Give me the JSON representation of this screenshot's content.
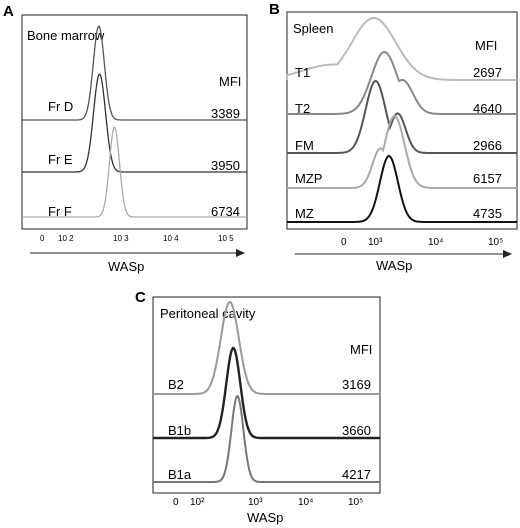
{
  "panels": [
    {
      "letter": "A",
      "title": "Bone marrow",
      "mfi_header": "MFI",
      "axis_label": "WASp",
      "ticks": [
        "0",
        "10 2",
        "10 3",
        "10 4",
        "10 5"
      ],
      "rows": [
        {
          "label": "Fr D",
          "mfi": "3389",
          "color": "#555555"
        },
        {
          "label": "Fr E",
          "mfi": "3950",
          "color": "#333333"
        },
        {
          "label": "Fr F",
          "mfi": "6734",
          "color": "#aaaaaa"
        }
      ]
    },
    {
      "letter": "B",
      "title": "Spleen",
      "mfi_header": "MFI",
      "axis_label": "WASp",
      "ticks": [
        "0",
        "10³",
        "10⁴",
        "10⁵"
      ],
      "rows": [
        {
          "label": "T1",
          "mfi": "2697",
          "color": "#bbbbbb"
        },
        {
          "label": "T2",
          "mfi": "4640",
          "color": "#888888"
        },
        {
          "label": "FM",
          "mfi": "2966",
          "color": "#555555"
        },
        {
          "label": "MZP",
          "mfi": "6157",
          "color": "#aaaaaa"
        },
        {
          "label": "MZ",
          "mfi": "4735",
          "color": "#111111"
        }
      ]
    },
    {
      "letter": "C",
      "title": "Peritoneal cavity",
      "mfi_header": "MFI",
      "axis_label": "WASp",
      "ticks": [
        "0",
        "10²",
        "10³",
        "10⁴",
        "10⁵"
      ],
      "rows": [
        {
          "label": "B2",
          "mfi": "3169",
          "color": "#999999"
        },
        {
          "label": "B1b",
          "mfi": "3660",
          "color": "#222222"
        },
        {
          "label": "B1a",
          "mfi": "4217",
          "color": "#777777"
        }
      ]
    }
  ],
  "chart_data": [
    {
      "type": "area",
      "title": "Bone marrow",
      "xlabel": "WASp",
      "x_scale": "biexponential",
      "xticks": [
        "0",
        "10 2",
        "10 3",
        "10 4",
        "10 5"
      ],
      "series": [
        {
          "name": "Fr D",
          "mfi": 3389,
          "peak_x": 3000
        },
        {
          "name": "Fr E",
          "mfi": 3950,
          "peak_x": 3100
        },
        {
          "name": "Fr F",
          "mfi": 6734,
          "peak_x": 6000
        }
      ]
    },
    {
      "type": "area",
      "title": "Spleen",
      "xlabel": "WASp",
      "x_scale": "biexponential",
      "xticks": [
        "0",
        "10³",
        "10⁴",
        "10⁵"
      ],
      "series": [
        {
          "name": "T1",
          "mfi": 2697,
          "peak_x": 2800
        },
        {
          "name": "T2",
          "mfi": 4640,
          "peak_x": 4200
        },
        {
          "name": "FM",
          "mfi": 2966,
          "peak_x": 3000
        },
        {
          "name": "MZP",
          "mfi": 6157,
          "peak_x": 6200
        },
        {
          "name": "MZ",
          "mfi": 4735,
          "peak_x": 5000
        }
      ]
    },
    {
      "type": "area",
      "title": "Peritoneal cavity",
      "xlabel": "WASp",
      "x_scale": "biexponential",
      "xticks": [
        "0",
        "10²",
        "10³",
        "10⁴",
        "10⁵"
      ],
      "series": [
        {
          "name": "B2",
          "mfi": 3169,
          "peak_x": 3000
        },
        {
          "name": "B1b",
          "mfi": 3660,
          "peak_x": 3500
        },
        {
          "name": "B1a",
          "mfi": 4217,
          "peak_x": 4200
        }
      ]
    }
  ]
}
